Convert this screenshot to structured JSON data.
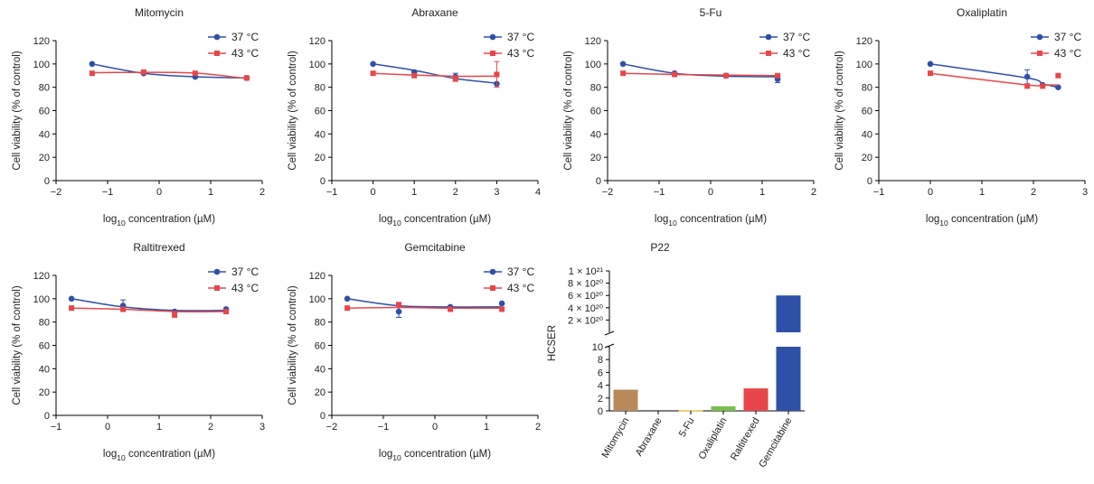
{
  "colors": {
    "c37": "#2f50a8",
    "c43": "#e8464a"
  },
  "legend": {
    "s37": "37 °C",
    "s43": "43 °C"
  },
  "ylabel": "Cell viability (% of control)",
  "xlabel": {
    "pre": "log",
    "sub": "10",
    "post": " concentration (µM)"
  },
  "chart_data": [
    {
      "type": "line",
      "title": "Mitomycin",
      "xlim": [
        -2,
        2
      ],
      "xticks": [
        -2,
        -1,
        0,
        1,
        2
      ],
      "ylim": [
        0,
        120
      ],
      "yticks": [
        0,
        20,
        40,
        60,
        80,
        100,
        120
      ],
      "series": [
        {
          "name": "37 °C",
          "x": [
            -1.3,
            -0.3,
            0.7,
            1.7
          ],
          "y": [
            100,
            92,
            89,
            88
          ],
          "err": [
            0,
            0,
            0,
            0
          ],
          "curve": [
            100,
            92,
            89,
            88
          ]
        },
        {
          "name": "43 °C",
          "x": [
            -1.3,
            -0.3,
            0.7,
            1.7
          ],
          "y": [
            92,
            93,
            92,
            88
          ],
          "err": [
            0,
            0,
            0,
            0
          ],
          "curve": [
            92.5,
            92.8,
            92.2,
            87.5
          ]
        }
      ]
    },
    {
      "type": "line",
      "title": "Abraxane",
      "xlim": [
        -1,
        4
      ],
      "xticks": [
        -1,
        0,
        1,
        2,
        3,
        4
      ],
      "ylim": [
        0,
        120
      ],
      "yticks": [
        0,
        20,
        40,
        60,
        80,
        100,
        120
      ],
      "series": [
        {
          "name": "37 °C",
          "x": [
            0,
            1,
            2,
            3
          ],
          "y": [
            100,
            93,
            89,
            83
          ],
          "err": [
            0,
            0,
            3,
            0
          ],
          "curve": [
            100,
            94.5,
            87.5,
            83.5
          ]
        },
        {
          "name": "43 °C",
          "x": [
            0,
            1,
            2,
            3
          ],
          "y": [
            92,
            90,
            87,
            91
          ],
          "err": [
            0,
            0,
            0,
            11
          ],
          "curve": [
            92,
            90.5,
            89.5,
            89.5
          ]
        }
      ]
    },
    {
      "type": "line",
      "title": "5-Fu",
      "xlim": [
        -2,
        2
      ],
      "xticks": [
        -2,
        -1,
        0,
        1,
        2
      ],
      "ylim": [
        0,
        120
      ],
      "yticks": [
        0,
        20,
        40,
        60,
        80,
        100,
        120
      ],
      "series": [
        {
          "name": "37 °C",
          "x": [
            -1.7,
            -0.7,
            0.3,
            1.3
          ],
          "y": [
            100,
            92,
            90,
            87
          ],
          "err": [
            0,
            0,
            0,
            3
          ],
          "curve": [
            100,
            92,
            89.5,
            89
          ]
        },
        {
          "name": "43 °C",
          "x": [
            -1.7,
            -0.7,
            0.3,
            1.3
          ],
          "y": [
            92,
            91,
            90,
            90
          ],
          "err": [
            0,
            0,
            0,
            0
          ],
          "curve": [
            92,
            91,
            90.5,
            90
          ]
        }
      ]
    },
    {
      "type": "line",
      "title": "Oxaliplatin",
      "xlim": [
        -1,
        3
      ],
      "xticks": [
        -1,
        0,
        1,
        2,
        3
      ],
      "ylim": [
        0,
        120
      ],
      "yticks": [
        0,
        20,
        40,
        60,
        80,
        100,
        120
      ],
      "series": [
        {
          "name": "37 °C",
          "x": [
            0,
            1.88,
            2.18,
            2.48
          ],
          "y": [
            100,
            89,
            82,
            80
          ],
          "err": [
            0,
            6,
            0,
            0
          ],
          "curve": [
            100,
            88,
            83,
            80
          ]
        },
        {
          "name": "43 °C",
          "x": [
            0,
            1.88,
            2.18,
            2.48
          ],
          "y": [
            92,
            81,
            81,
            90
          ],
          "err": [
            0,
            0,
            0,
            0
          ],
          "curve": [
            92,
            82,
            82,
            82
          ]
        }
      ]
    },
    {
      "type": "line",
      "title": "Raltitrexed",
      "xlim": [
        -1,
        3
      ],
      "xticks": [
        -1,
        0,
        1,
        2,
        3
      ],
      "ylim": [
        0,
        120
      ],
      "yticks": [
        0,
        20,
        40,
        60,
        80,
        100,
        120
      ],
      "series": [
        {
          "name": "37 °C",
          "x": [
            -0.7,
            0.3,
            1.3,
            2.3
          ],
          "y": [
            100,
            94,
            89,
            91
          ],
          "err": [
            0,
            5,
            0,
            0
          ],
          "curve": [
            100,
            93,
            90,
            90
          ]
        },
        {
          "name": "43 °C",
          "x": [
            -0.7,
            0.3,
            1.3,
            2.3
          ],
          "y": [
            92,
            91,
            86,
            89
          ],
          "err": [
            0,
            0,
            0,
            0
          ],
          "curve": [
            92,
            91,
            89,
            89
          ]
        }
      ]
    },
    {
      "type": "line",
      "title": "Gemcitabine",
      "xlim": [
        -2,
        2
      ],
      "xticks": [
        -2,
        -1,
        0,
        1,
        2
      ],
      "ylim": [
        0,
        120
      ],
      "yticks": [
        0,
        20,
        40,
        60,
        80,
        100,
        120
      ],
      "series": [
        {
          "name": "37 °C",
          "x": [
            -1.7,
            -0.7,
            0.3,
            1.3
          ],
          "y": [
            100,
            89,
            93,
            96
          ],
          "err": [
            0,
            5,
            0,
            0
          ],
          "curve": [
            100,
            94,
            93,
            93
          ]
        },
        {
          "name": "43 °C",
          "x": [
            -1.7,
            -0.7,
            0.3,
            1.3
          ],
          "y": [
            92,
            95,
            91,
            91
          ],
          "err": [
            0,
            0,
            0,
            0
          ],
          "curve": [
            92,
            92.5,
            92,
            92
          ]
        }
      ]
    },
    {
      "type": "bar",
      "title": "P22",
      "ylabel": "HCSER",
      "categories": [
        "Mitomycin",
        "Abraxane",
        "5-Fu",
        "Oxaliplatin",
        "Raltitrexed",
        "Gemcitabine"
      ],
      "values": [
        3.3,
        0,
        0.1,
        0.7,
        3.5,
        6e+20
      ],
      "colors": [
        "#b8895a",
        "#b8895a",
        "#e6c24a",
        "#76bf4b",
        "#e8464a",
        "#2f50a8"
      ],
      "lower_yticks": [
        "0",
        "2",
        "4",
        "6",
        "8",
        "10"
      ],
      "upper_yticks": [
        "2 × 10²⁰",
        "4 × 10²⁰",
        "6 × 10²⁰",
        "8 × 10²⁰",
        "1 × 10²¹"
      ]
    }
  ]
}
